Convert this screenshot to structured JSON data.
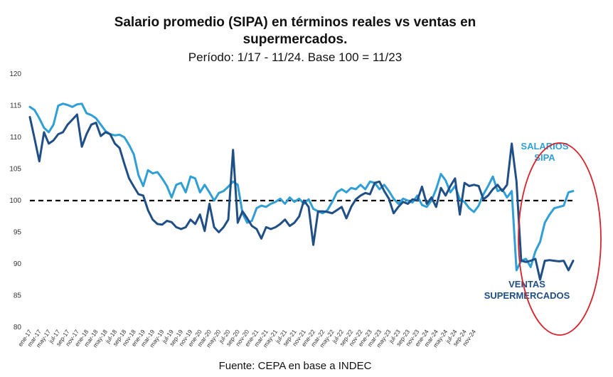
{
  "title_line1": "Salario promedio (SIPA) en términos reales vs ventas en",
  "title_line2": "supermercados.",
  "subtitle": "Período: 1/17 - 11/24. Base 100 = 11/23",
  "source": "Fuente: CEPA en base a INDEC",
  "colors": {
    "salarios": "#2f9fd6",
    "ventas": "#1f4f86",
    "reference": "#000000",
    "highlight": "#d9232b"
  },
  "chart_data": {
    "type": "line",
    "title": "Salario promedio (SIPA) en términos reales vs ventas en supermercados.",
    "subtitle": "Período: 1/17 - 11/24. Base 100 = 11/23",
    "ylim": [
      80,
      120
    ],
    "yticks": [
      80,
      85,
      90,
      95,
      100,
      105,
      110,
      115,
      120
    ],
    "grid": false,
    "x_tick_labels": [
      "ene-17",
      "mar-17",
      "may-17",
      "jul-17",
      "sep-17",
      "nov-17",
      "ene-18",
      "mar-18",
      "may-18",
      "jul-18",
      "sep-18",
      "nov-18",
      "ene-19",
      "mar-19",
      "may-19",
      "jul-19",
      "sep-19",
      "nov-19",
      "ene-20",
      "mar-20",
      "may-20",
      "jul-20",
      "sep-20",
      "nov-20",
      "ene-21",
      "mar-21",
      "may-21",
      "jul-21",
      "sep-21",
      "nov-21",
      "ene-22",
      "mar-22",
      "may-22",
      "jul-22",
      "sep-22",
      "nov-22",
      "ene-23",
      "mar-23",
      "may-23",
      "jul-23",
      "sep-23",
      "nov-23",
      "ene-24",
      "mar-24",
      "may-24",
      "jul-24",
      "sep-24",
      "nov-24"
    ],
    "reference_line": 100,
    "series": [
      {
        "name": "SALARIOS SIPA",
        "label": [
          "SALARIOS",
          "SIPA"
        ],
        "values": [
          114.8,
          114.3,
          113.0,
          111.5,
          110.8,
          112.0,
          115.0,
          115.3,
          115.1,
          114.8,
          115.2,
          115.3,
          113.8,
          113.5,
          113.0,
          112.0,
          111.0,
          110.5,
          110.3,
          110.4,
          110.0,
          108.8,
          107.3,
          104.0,
          102.3,
          104.8,
          104.3,
          104.5,
          103.5,
          102.3,
          100.5,
          102.5,
          102.8,
          101.3,
          103.8,
          103.5,
          101.3,
          102.5,
          101.3,
          100.0,
          101.2,
          101.5,
          102.2,
          103.0,
          102.5,
          98.0,
          96.5,
          96.8,
          98.8,
          99.2,
          99.0,
          99.5,
          99.8,
          100.3,
          99.5,
          100.5,
          99.8,
          100.3,
          99.5,
          100.2,
          98.7,
          98.3,
          98.0,
          98.5,
          99.8,
          101.3,
          101.8,
          101.3,
          102.0,
          101.8,
          102.5,
          101.8,
          103.0,
          102.8,
          101.8,
          102.5,
          101.5,
          100.3,
          99.5,
          100.3,
          100.0,
          99.7,
          100.8,
          99.3,
          99.0,
          100.0,
          101.8,
          104.2,
          103.2,
          101.3,
          102.3,
          100.2,
          99.8,
          98.8,
          98.2,
          99.2,
          101.0,
          102.3,
          103.8,
          101.5,
          101.8,
          100.5,
          101.5,
          89.0,
          90.5,
          90.8,
          89.5,
          92.0,
          93.5,
          96.5,
          97.8,
          98.8,
          99.0,
          99.2,
          101.3,
          101.5
        ]
      },
      {
        "name": "VENTAS SUPERMERCADOS",
        "label": [
          "VENTAS",
          "SUPERMERCADOS"
        ],
        "values": [
          113.2,
          109.8,
          106.2,
          110.8,
          109.0,
          109.5,
          110.5,
          110.8,
          112.0,
          112.8,
          113.6,
          108.5,
          110.5,
          112.0,
          112.3,
          110.2,
          110.8,
          110.5,
          109.0,
          108.3,
          105.8,
          103.5,
          102.2,
          101.0,
          100.8,
          98.5,
          97.0,
          96.3,
          96.2,
          96.8,
          96.6,
          95.8,
          95.5,
          95.8,
          97.0,
          96.3,
          97.8,
          95.2,
          99.5,
          95.8,
          95.0,
          95.8,
          97.0,
          108.0,
          96.5,
          98.3,
          97.2,
          96.0,
          95.5,
          94.0,
          95.8,
          95.5,
          95.8,
          96.3,
          97.0,
          96.0,
          96.5,
          97.5,
          100.0,
          99.0,
          93.0,
          98.3,
          98.3,
          98.2,
          98.0,
          98.5,
          99.0,
          97.2,
          99.0,
          100.2,
          100.8,
          101.2,
          101.0,
          102.8,
          103.0,
          101.5,
          100.3,
          98.0,
          99.0,
          99.8,
          99.5,
          100.2,
          100.0,
          102.2,
          99.5,
          100.5,
          99.0,
          102.0,
          100.8,
          102.3,
          103.5,
          97.8,
          102.8,
          102.3,
          102.5,
          102.3,
          100.2,
          100.8,
          101.8,
          102.5,
          101.5,
          102.5,
          109.0,
          103.0,
          90.5,
          90.3,
          90.5,
          90.8,
          87.5,
          90.5,
          90.6,
          90.5,
          90.4,
          90.5,
          89.0,
          90.5
        ]
      }
    ],
    "annotations": [
      "SALARIOS SIPA",
      "VENTAS SUPERMERCADOS"
    ]
  }
}
